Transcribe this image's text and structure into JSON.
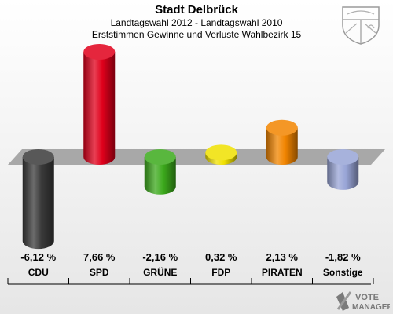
{
  "header": {
    "title": "Stadt Delbrück",
    "subtitle": "Landtagswahl 2012 - Landtagswahl 2010",
    "caption": "Erststimmen Gewinne und Verluste Wahlbezirk 15"
  },
  "crest_icon": "coat-of-arms-nrw-icon",
  "logo": {
    "line1": "VOTE",
    "line2": "MANAGER",
    "icon": "x-ballot-icon"
  },
  "chart_data": {
    "type": "bar",
    "categories": [
      "CDU",
      "SPD",
      "GRÜNE",
      "FDP",
      "PIRATEN",
      "Sonstige"
    ],
    "values": [
      -6.12,
      7.66,
      -2.16,
      0.32,
      2.13,
      -1.82
    ],
    "value_labels": [
      "-6,12 %",
      "7,66 %",
      "-2,16 %",
      "0,32 %",
      "2,13 %",
      "-1,82 %"
    ],
    "colors": [
      "#3a3a3a",
      "#e0001b",
      "#3caa1c",
      "#f0e000",
      "#f28500",
      "#98a4d6"
    ],
    "title": "Stadt Delbrück",
    "xlabel": "",
    "ylabel": "",
    "ylim": [
      -8,
      9
    ]
  }
}
